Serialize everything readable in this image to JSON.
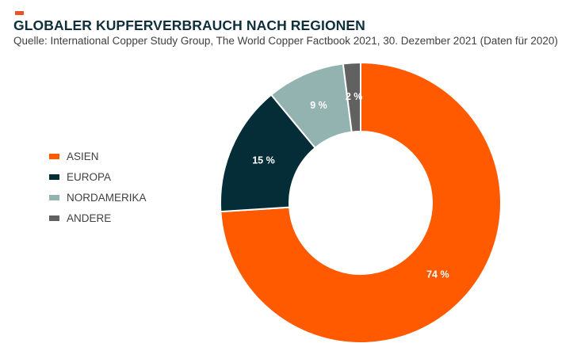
{
  "header": {
    "title": "GLOBALER KUPFERVERBRAUCH NACH REGIONEN",
    "subtitle": "Quelle: International Copper Study Group, The World Copper Factbook 2021, 30. Dezember 2021 (Daten für 2020)",
    "accent_color": "#e8542a"
  },
  "chart_data": {
    "type": "pie",
    "variant": "donut",
    "title": "GLOBALER KUPFERVERBRAUCH NACH REGIONEN",
    "legend_position": "left",
    "slices": [
      {
        "label": "ASIEN",
        "value": 74,
        "value_label": "74 %",
        "color": "#ff5a00"
      },
      {
        "label": "EUROPA",
        "value": 15,
        "value_label": "15 %",
        "color": "#042d38"
      },
      {
        "label": "NORDAMERIKA",
        "value": 9,
        "value_label": "9 %",
        "color": "#92b3b0"
      },
      {
        "label": "ANDERE",
        "value": 2,
        "value_label": "2 %",
        "color": "#616161"
      }
    ]
  }
}
